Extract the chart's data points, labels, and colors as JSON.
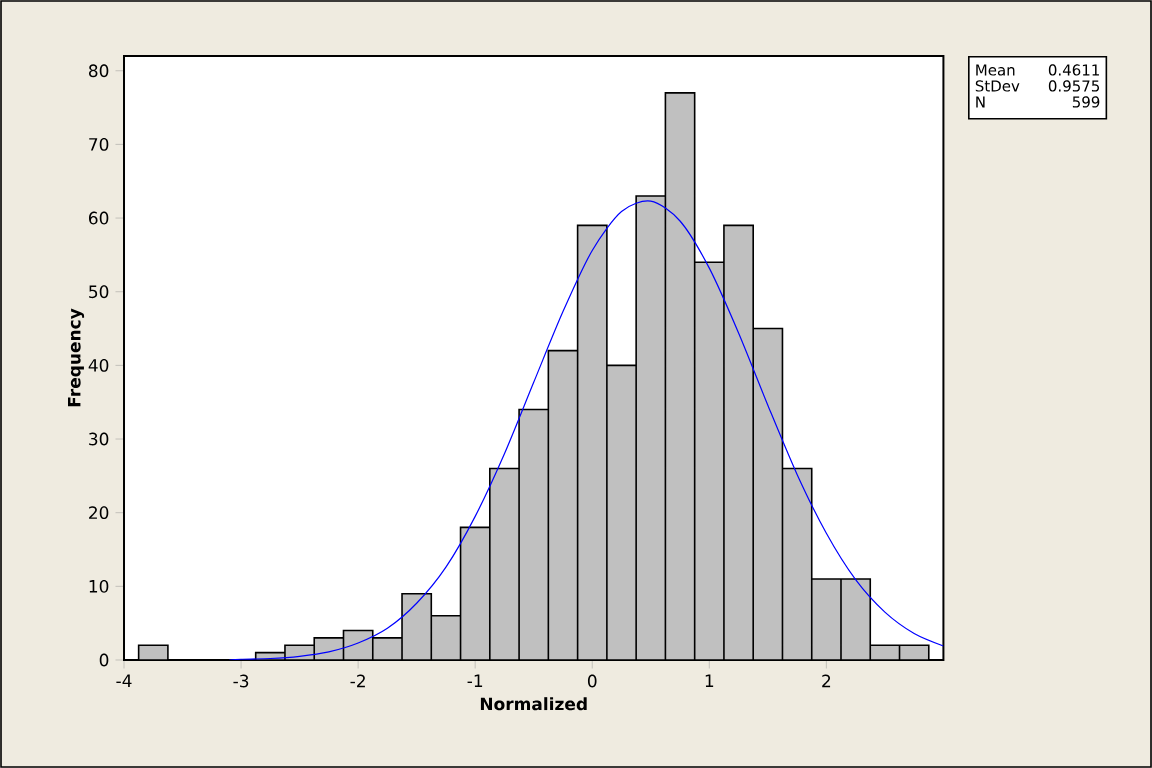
{
  "chart_data": {
    "type": "histogram",
    "xlabel": "Normalized",
    "ylabel": "Frequency",
    "bins": [
      -3.875,
      -3.625,
      -3.375,
      -3.125,
      -2.875,
      -2.625,
      -2.375,
      -2.125,
      -1.875,
      -1.625,
      -1.375,
      -1.125,
      -0.875,
      -0.625,
      -0.375,
      -0.125,
      0.125,
      0.375,
      0.625,
      0.875,
      1.125,
      1.375,
      1.625,
      1.875,
      2.125,
      2.375,
      2.625,
      2.875
    ],
    "values": [
      2,
      0,
      0,
      0,
      1,
      2,
      3,
      4,
      3,
      9,
      6,
      18,
      26,
      34,
      42,
      59,
      40,
      63,
      77,
      54,
      59,
      45,
      26,
      11,
      11,
      2,
      2
    ],
    "color": "#c0c0c0",
    "series": [
      {
        "type": "line",
        "color": "#0000ff",
        "x": [
          -3.1,
          -3.0,
          -2.75,
          -2.5,
          -2.25,
          -2.0,
          -1.75,
          -1.5,
          -1.25,
          -1.0,
          -0.75,
          -0.5,
          -0.25,
          0.0,
          0.25,
          0.5,
          0.75,
          1.0,
          1.25,
          1.5,
          1.75,
          2.0,
          2.25,
          2.5,
          2.75,
          3.0
        ],
        "values": [
          0,
          0.1,
          0.2,
          0.5,
          1.1,
          2.3,
          4.3,
          7.7,
          12.6,
          19.5,
          28.0,
          37.7,
          47.3,
          55.6,
          60.9,
          62.3,
          59.6,
          53.2,
          44.4,
          34.6,
          25.2,
          17.2,
          10.9,
          6.5,
          3.6,
          1.9
        ]
      }
    ],
    "xlim": [
      -4,
      3.0
    ],
    "xticks": [
      -4,
      -3,
      -2,
      -1,
      0,
      1,
      2
    ],
    "ylim": [
      0,
      82
    ],
    "yticks": [
      0,
      10,
      20,
      30,
      40,
      50,
      60,
      70,
      80
    ],
    "annotations": [
      "Mean",
      "0.4611",
      "StDev",
      "0.9575",
      "N",
      "599"
    ],
    "grid": false
  }
}
